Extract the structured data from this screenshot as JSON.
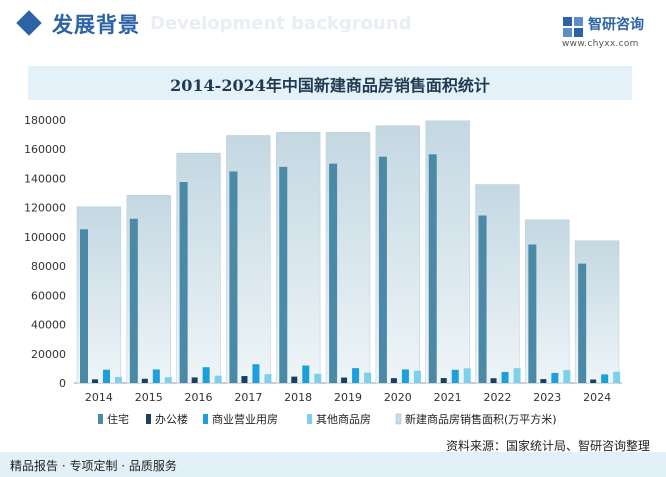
{
  "header": {
    "title_cn": "发展背景",
    "title_en": "Development background"
  },
  "logo": {
    "name": "智研咨询",
    "url": "www.chyxx.com"
  },
  "chart_data": {
    "type": "bar",
    "title": "2014-2024年中国新建商品房销售面积统计",
    "categories": [
      "2014",
      "2015",
      "2016",
      "2017",
      "2018",
      "2019",
      "2020",
      "2021",
      "2022",
      "2023",
      "2024"
    ],
    "ylim": [
      0,
      180000
    ],
    "yticks": [
      0,
      20000,
      40000,
      60000,
      80000,
      100000,
      120000,
      140000,
      160000,
      180000
    ],
    "series": [
      {
        "name": "住宅",
        "color": "#4a8aa6",
        "values": [
          105188,
          112412,
          137540,
          144789,
          147929,
          150144,
          154878,
          156532,
          114631,
          94796,
          81688
        ]
      },
      {
        "name": "办公楼",
        "color": "#1c3e60",
        "values": [
          2498,
          2913,
          3826,
          4756,
          4363,
          3723,
          3334,
          3375,
          3257,
          2664,
          2363
        ]
      },
      {
        "name": "商业营业用房",
        "color": "#1ca0dc",
        "values": [
          9075,
          9254,
          10812,
          12838,
          11971,
          10174,
          9288,
          9039,
          7580,
          6876,
          5897
        ]
      },
      {
        "name": "其他商品房",
        "color": "#7cd0ea",
        "values": [
          4125,
          3960,
          5007,
          6019,
          6300,
          7134,
          8383,
          10037,
          10146,
          8800,
          7700
        ]
      },
      {
        "name": "新建商品房销售面积(万平方米)",
        "color": "#c9dde6",
        "values": [
          120649,
          128495,
          157349,
          169408,
          171654,
          171558,
          176086,
          179433,
          135837,
          111735,
          97385
        ]
      }
    ],
    "legend_position": "bottom"
  },
  "source": "资料来源：国家统计局、智研咨询整理",
  "footer": "精品报告 · 专项定制 · 品质服务"
}
